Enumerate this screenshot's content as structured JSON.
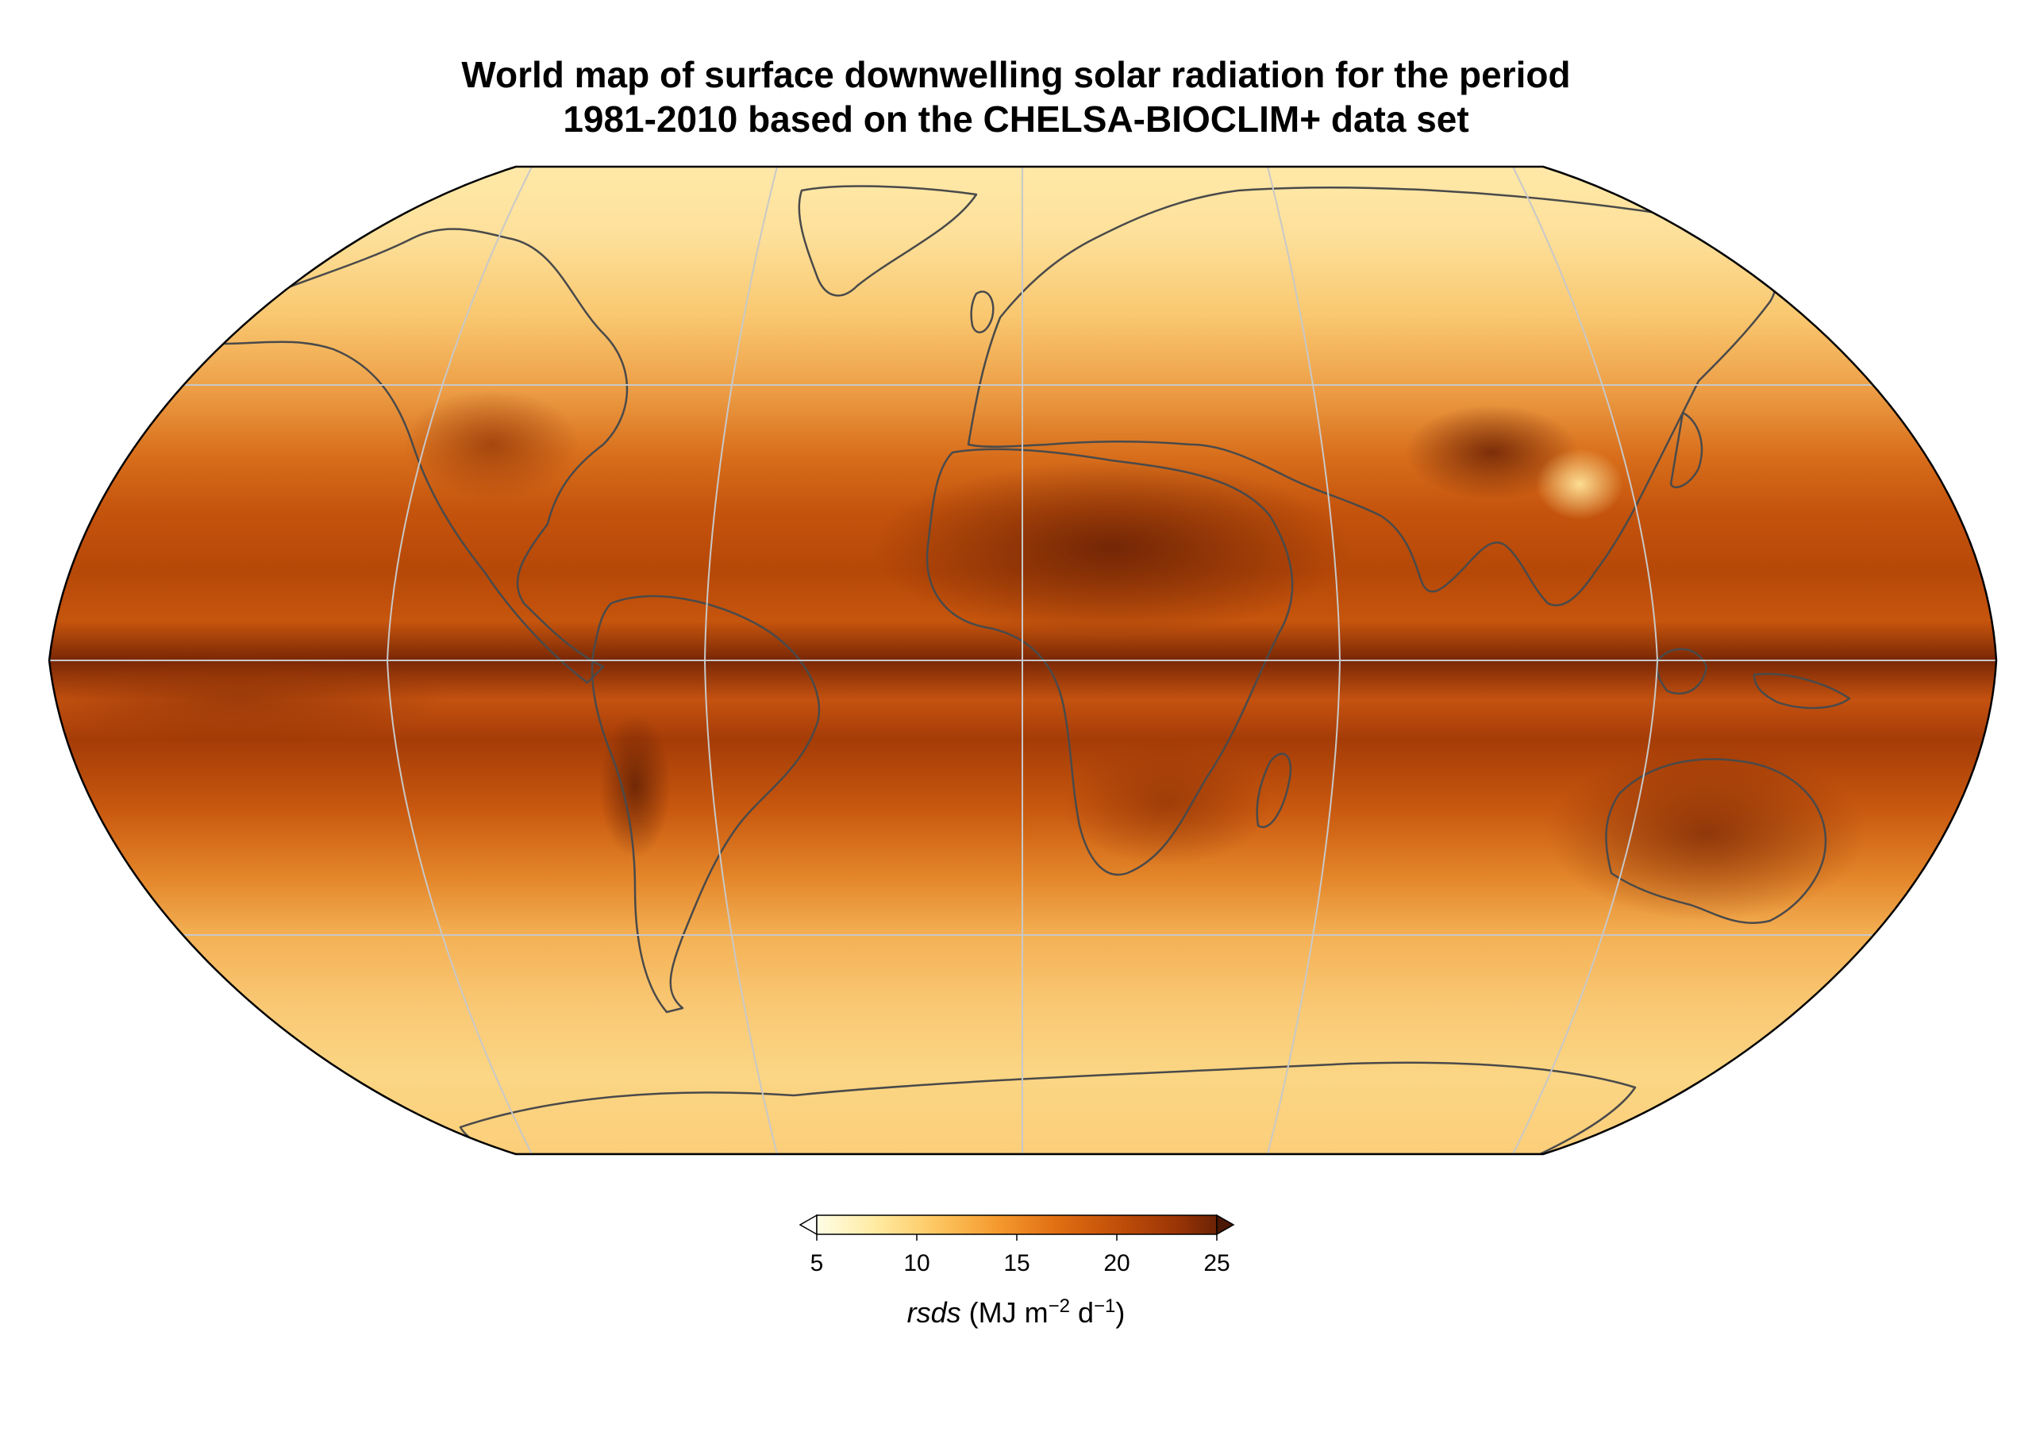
{
  "title": {
    "line1": "World map of surface downwelling solar radiation for the period",
    "line2": "1981-2010 based on the CHELSA-BIOCLIM+ data set"
  },
  "colorbar": {
    "variable": "rsds",
    "unit_prefix": "(MJ m",
    "unit_exp1": "−2",
    "unit_mid": " d",
    "unit_exp2": "−1",
    "unit_suffix": ")",
    "ticks": [
      "5",
      "10",
      "15",
      "20",
      "25"
    ],
    "min": 5,
    "max": 25,
    "extend": "both",
    "colors": [
      "#fffde6",
      "#ffeaa0",
      "#fdc660",
      "#f59a2e",
      "#e06e12",
      "#c24f09",
      "#9b3506",
      "#6b2205"
    ]
  },
  "map": {
    "projection": "Robinson",
    "gridlines": true,
    "coastlines": true,
    "borders": true,
    "colors": {
      "gridline": "#c8c8c8",
      "coastline": "#4a4a4a",
      "frame": "#000000"
    }
  }
}
